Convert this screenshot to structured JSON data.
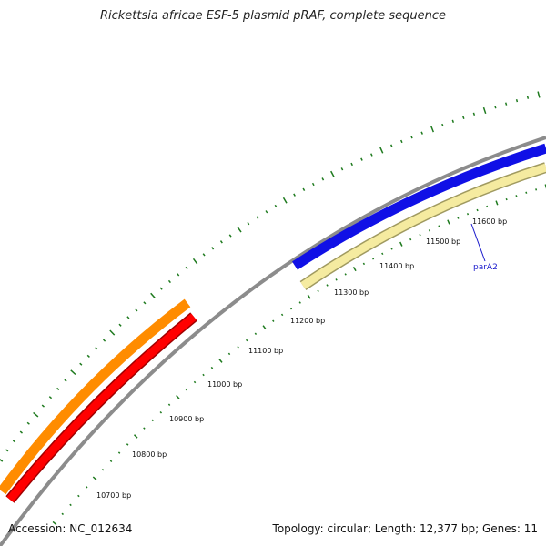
{
  "title": "Rickettsia africae ESF-5 plasmid pRAF, complete sequence",
  "accession": "Accession: NC_012634",
  "summary": "Topology: circular; Length: 12,377 bp; Genes: 11",
  "colors": {
    "backbone": "#8c8c8c",
    "major_tick": "#1e7a1e",
    "minor_tick": "#1e7a1e",
    "orange_feature": "#ff8c00",
    "red_feature": "#ff0000",
    "blue_feature": "#1010e6",
    "yellow_feature": "#f5eba0",
    "label": "#1a1acc"
  },
  "scale_labels": [
    "10700 bp",
    "10800 bp",
    "10900 bp",
    "11000 bp",
    "11100 bp",
    "11200 bp",
    "11300 bp",
    "11400 bp",
    "11500 bp",
    "11600 bp"
  ],
  "genes": [
    {
      "label": "parA2",
      "color": "#1010e6"
    }
  ]
}
